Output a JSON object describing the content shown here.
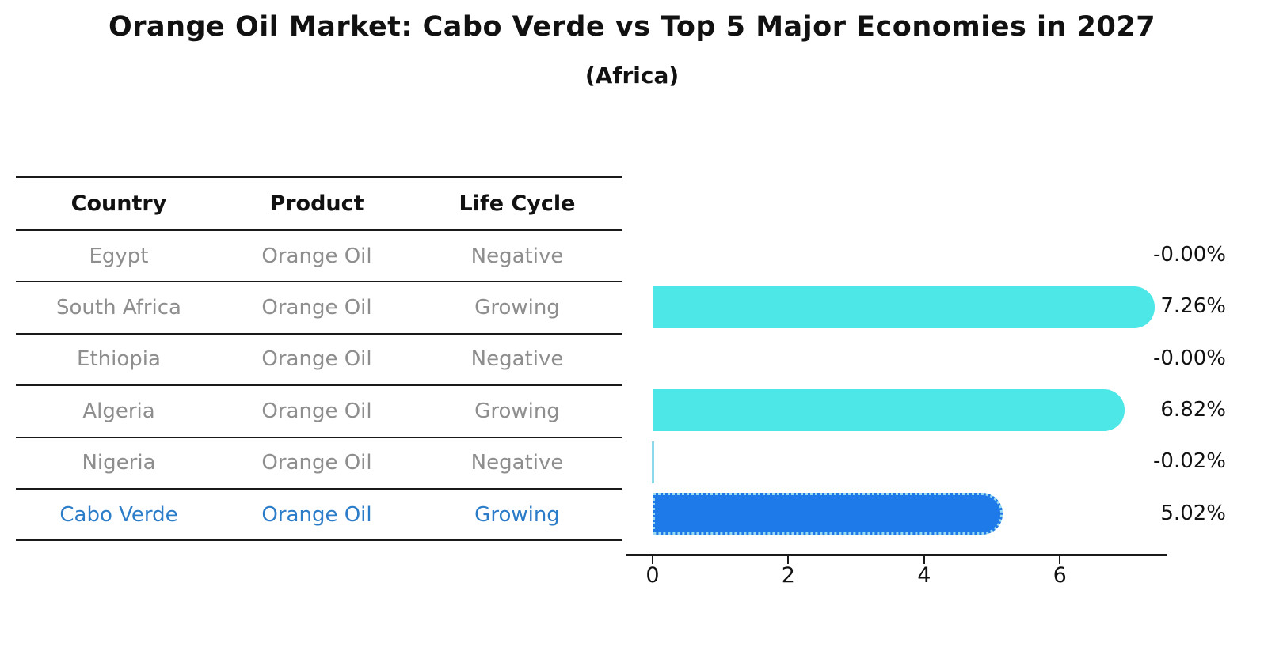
{
  "title": "Orange Oil Market: Cabo Verde vs Top 5 Major Economies in 2027",
  "subtitle": "(Africa)",
  "table": {
    "headers": [
      "Country",
      "Product",
      "Life Cycle"
    ],
    "rows": [
      {
        "country": "Egypt",
        "product": "Orange Oil",
        "life_cycle": "Negative",
        "highlight": false
      },
      {
        "country": "South Africa",
        "product": "Orange Oil",
        "life_cycle": "Growing",
        "highlight": false
      },
      {
        "country": "Ethiopia",
        "product": "Orange Oil",
        "life_cycle": "Negative",
        "highlight": false
      },
      {
        "country": "Algeria",
        "product": "Orange Oil",
        "life_cycle": "Growing",
        "highlight": false
      },
      {
        "country": "Nigeria",
        "product": "Orange Oil",
        "life_cycle": "Negative",
        "highlight": false
      },
      {
        "country": "Cabo Verde",
        "product": "Orange Oil",
        "life_cycle": "Growing",
        "highlight": true
      }
    ]
  },
  "chart_data": {
    "type": "bar",
    "orientation": "horizontal",
    "title": "Orange Oil Market: Cabo Verde vs Top 5 Major Economies in 2027",
    "subtitle": "(Africa)",
    "categories": [
      "Egypt",
      "South Africa",
      "Ethiopia",
      "Algeria",
      "Nigeria",
      "Cabo Verde"
    ],
    "values": [
      -0.0,
      7.26,
      -0.0,
      6.82,
      -0.02,
      5.02
    ],
    "value_labels": [
      "-0.00%",
      "7.26%",
      "-0.00%",
      "6.82%",
      "-0.02%",
      "5.02%"
    ],
    "xticks": [
      "0",
      "2",
      "4",
      "6"
    ],
    "xtick_values": [
      0,
      2,
      4,
      6
    ],
    "xlim": [
      -0.42,
      7.55
    ],
    "ylabel": "",
    "xlabel": "",
    "grid": false,
    "legend": false,
    "highlight_index": 5,
    "colors": {
      "bar": "#4DE7E7",
      "highlight_bar": "#1E7AE8",
      "highlight_edge": "#9AD9F0",
      "highlight_text": "#2B7CC9",
      "table_text": "#8E8E8E",
      "axis": "#1a1a1a",
      "text": "#111111"
    }
  }
}
